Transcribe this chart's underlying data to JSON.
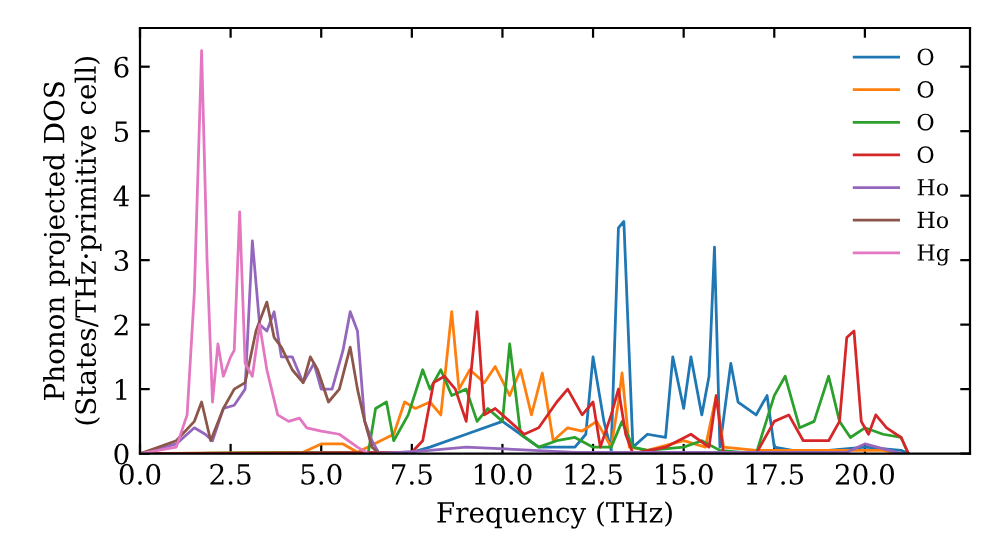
{
  "chart_data": {
    "type": "line",
    "xlabel": "Frequency (THz)",
    "ylabel": "Phonon projected DOS\n(States/THz·primitive cell)",
    "xlim": [
      0,
      22.9
    ],
    "ylim": [
      0,
      6.6
    ],
    "xticks": [
      {
        "value": 0,
        "label": "0.0"
      },
      {
        "value": 2.5,
        "label": "2.5"
      },
      {
        "value": 5,
        "label": "5.0"
      },
      {
        "value": 7.5,
        "label": "7.5"
      },
      {
        "value": 10,
        "label": "10.0"
      },
      {
        "value": 12.5,
        "label": "12.5"
      },
      {
        "value": 15,
        "label": "15.0"
      },
      {
        "value": 17.5,
        "label": "17.5"
      },
      {
        "value": 20,
        "label": "20.0"
      }
    ],
    "yticks": [
      0,
      1,
      2,
      3,
      4,
      5,
      6
    ],
    "grid": false,
    "legend": "top right",
    "marker": "none",
    "line_style": "solid",
    "series": [
      {
        "name": "O",
        "color": "#1f77b4",
        "x": [
          0,
          7.5,
          8,
          9,
          10,
          10.5,
          11,
          12,
          12.3,
          12.5,
          12.8,
          13.0,
          13.2,
          13.35,
          13.6,
          14,
          14.5,
          14.7,
          15.0,
          15.2,
          15.5,
          15.7,
          15.85,
          16.0,
          16.3,
          16.5,
          17,
          17.3,
          17.5,
          18,
          19,
          20,
          21,
          21.2
        ],
        "values": [
          0,
          0.02,
          0.1,
          0.3,
          0.5,
          0.3,
          0.1,
          0.1,
          0.3,
          1.5,
          0.5,
          0.05,
          3.5,
          3.6,
          0.1,
          0.3,
          0.25,
          1.5,
          0.7,
          1.5,
          0.6,
          1.2,
          3.2,
          0.1,
          1.4,
          0.8,
          0.6,
          0.9,
          0.1,
          0.05,
          0.05,
          0.1,
          0.05,
          0
        ]
      },
      {
        "name": "O",
        "color": "#ff7f0e",
        "x": [
          0,
          4.5,
          5,
          5.6,
          6,
          7.0,
          7.3,
          7.6,
          8.0,
          8.3,
          8.6,
          8.8,
          9.1,
          9.5,
          9.8,
          10.2,
          10.5,
          10.8,
          11.1,
          11.4,
          11.8,
          12.2,
          12.6,
          13.0,
          13.2,
          13.3,
          13.5,
          14.0,
          15.0,
          15.6,
          15.9,
          16.1,
          17,
          19,
          20.5,
          21
        ],
        "values": [
          0,
          0.02,
          0.15,
          0.15,
          0.02,
          0.3,
          0.8,
          0.7,
          0.8,
          0.6,
          2.2,
          1.0,
          1.3,
          1.1,
          1.35,
          0.9,
          1.3,
          0.6,
          1.25,
          0.2,
          0.4,
          0.35,
          0.5,
          0.1,
          0.8,
          1.25,
          0.1,
          0.05,
          0.2,
          0.1,
          0.9,
          0.1,
          0.05,
          0.05,
          0.05,
          0
        ]
      },
      {
        "name": "O",
        "color": "#2ca02c",
        "x": [
          0,
          6.3,
          6.5,
          6.8,
          7.0,
          7.4,
          7.8,
          8.0,
          8.3,
          8.6,
          9.0,
          9.3,
          9.6,
          10.0,
          10.2,
          10.5,
          11,
          11.5,
          12,
          12.5,
          13.0,
          13.3,
          13.6,
          14,
          15,
          15.5,
          16,
          17,
          17.5,
          17.8,
          18.2,
          18.6,
          19.0,
          19.3,
          19.6,
          20.0,
          20.5,
          21,
          21.2
        ],
        "values": [
          0,
          0.02,
          0.7,
          0.8,
          0.2,
          0.6,
          1.3,
          1.0,
          1.3,
          0.9,
          1.0,
          0.5,
          0.7,
          0.5,
          1.7,
          0.3,
          0.1,
          0.2,
          0.25,
          0.1,
          0.1,
          0.5,
          0.1,
          0.05,
          0.1,
          0.2,
          0.05,
          0,
          0.9,
          1.2,
          0.4,
          0.5,
          1.2,
          0.5,
          0.25,
          0.4,
          0.3,
          0.25,
          0
        ]
      },
      {
        "name": "O",
        "color": "#d62728",
        "x": [
          0,
          7.5,
          7.8,
          8.1,
          8.4,
          8.7,
          9.0,
          9.3,
          9.5,
          9.8,
          10.2,
          10.6,
          11.0,
          11.5,
          11.8,
          12.2,
          12.5,
          12.7,
          13.0,
          13.2,
          13.4,
          13.6,
          14.5,
          15.2,
          15.7,
          15.9,
          16.1,
          17.0,
          17.5,
          17.9,
          18.3,
          19.0,
          19.3,
          19.5,
          19.7,
          19.9,
          20.1,
          20.3,
          20.6,
          21.0,
          21.2
        ],
        "values": [
          0,
          0.02,
          0.2,
          1.1,
          1.2,
          1.0,
          0.5,
          2.2,
          0.6,
          0.7,
          0.5,
          0.3,
          0.4,
          0.8,
          1.0,
          0.6,
          0.8,
          0.1,
          0.6,
          1.0,
          0.3,
          0,
          0.1,
          0.3,
          0.1,
          0.9,
          0,
          0,
          0.5,
          0.6,
          0.2,
          0.2,
          0.5,
          1.8,
          1.9,
          0.5,
          0.3,
          0.6,
          0.4,
          0.25,
          0
        ]
      },
      {
        "name": "Ho",
        "color": "#9467bd",
        "x": [
          0,
          1.0,
          1.5,
          1.8,
          2.0,
          2.3,
          2.6,
          2.9,
          3.1,
          3.3,
          3.5,
          3.7,
          3.9,
          4.2,
          4.5,
          4.8,
          5.0,
          5.3,
          5.6,
          5.8,
          6.0,
          6.2,
          6.4,
          6.6,
          8,
          9,
          12,
          19.5,
          20,
          21
        ],
        "values": [
          0,
          0.15,
          0.4,
          0.3,
          0.2,
          0.7,
          0.75,
          1.0,
          3.3,
          2.0,
          1.9,
          2.2,
          1.5,
          1.5,
          1.1,
          1.4,
          1.0,
          1.0,
          1.6,
          2.2,
          1.9,
          0.5,
          0.2,
          0,
          0.05,
          0.1,
          0.02,
          0.02,
          0.15,
          0
        ]
      },
      {
        "name": "Ho",
        "color": "#8c564b",
        "x": [
          0,
          1.0,
          1.5,
          1.7,
          1.95,
          2.3,
          2.6,
          2.9,
          3.2,
          3.5,
          3.7,
          3.9,
          4.2,
          4.5,
          4.7,
          4.9,
          5.2,
          5.5,
          5.8,
          6.0,
          6.2,
          6.4,
          6.6
        ],
        "values": [
          0,
          0.2,
          0.5,
          0.8,
          0.2,
          0.7,
          1.0,
          1.1,
          1.9,
          2.35,
          1.8,
          1.65,
          1.3,
          1.1,
          1.5,
          1.3,
          0.8,
          1.0,
          1.65,
          1.0,
          0.5,
          0.1,
          0
        ]
      },
      {
        "name": "Hg",
        "color": "#e377c2",
        "x": [
          0,
          1.0,
          1.3,
          1.5,
          1.7,
          1.85,
          2.0,
          2.15,
          2.3,
          2.5,
          2.6,
          2.75,
          2.9,
          3.1,
          3.3,
          3.5,
          3.8,
          4.1,
          4.4,
          4.6,
          5.0,
          5.5,
          6.0,
          6.3
        ],
        "values": [
          0,
          0.1,
          0.6,
          2.5,
          6.25,
          3.0,
          0.8,
          1.7,
          1.2,
          1.5,
          1.6,
          3.75,
          1.4,
          1.2,
          2.0,
          1.3,
          0.6,
          0.5,
          0.55,
          0.4,
          0.35,
          0.3,
          0.1,
          0
        ]
      }
    ]
  }
}
